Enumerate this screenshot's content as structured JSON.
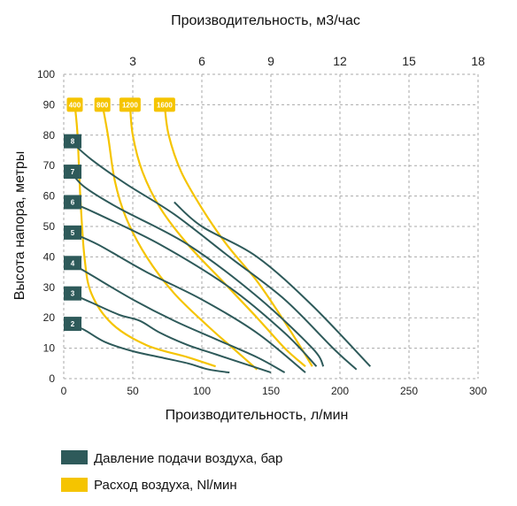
{
  "chart_data": {
    "type": "line",
    "title": "",
    "xlabel": "Производительность, л/мин",
    "x2label": "Производительность, м3/час",
    "ylabel": "Высота напора, метры",
    "xlim": [
      0,
      300
    ],
    "ylim": [
      0,
      100
    ],
    "x_ticks": [
      0,
      50,
      100,
      150,
      200,
      250,
      300
    ],
    "x2_ticks": [
      3,
      6,
      9,
      12,
      15,
      18
    ],
    "y_ticks": [
      0,
      10,
      20,
      30,
      40,
      50,
      60,
      70,
      80,
      90,
      100
    ],
    "grid": true,
    "colors": {
      "pressure": "#2e5a5a",
      "airflow": "#f5c400",
      "grid": "#aaaaaa"
    },
    "pressure_series": [
      {
        "name": "2",
        "points": [
          [
            5,
            18
          ],
          [
            15,
            16
          ],
          [
            30,
            12
          ],
          [
            50,
            9
          ],
          [
            70,
            7
          ],
          [
            90,
            5
          ],
          [
            105,
            3
          ],
          [
            120,
            2
          ]
        ]
      },
      {
        "name": "3",
        "points": [
          [
            5,
            28
          ],
          [
            20,
            25
          ],
          [
            40,
            21
          ],
          [
            55,
            19
          ],
          [
            70,
            15
          ],
          [
            90,
            11
          ],
          [
            110,
            8
          ],
          [
            130,
            5
          ],
          [
            150,
            2
          ]
        ]
      },
      {
        "name": "4",
        "points": [
          [
            5,
            38
          ],
          [
            20,
            34
          ],
          [
            50,
            26
          ],
          [
            80,
            19
          ],
          [
            110,
            13
          ],
          [
            140,
            7
          ],
          [
            160,
            2
          ]
        ]
      },
      {
        "name": "5",
        "points": [
          [
            5,
            48
          ],
          [
            25,
            44
          ],
          [
            60,
            35
          ],
          [
            100,
            26
          ],
          [
            140,
            15
          ],
          [
            175,
            2
          ]
        ]
      },
      {
        "name": "6",
        "points": [
          [
            5,
            58
          ],
          [
            25,
            54
          ],
          [
            70,
            44
          ],
          [
            120,
            30
          ],
          [
            160,
            15
          ],
          [
            183,
            4
          ]
        ]
      },
      {
        "name": "7",
        "points": [
          [
            5,
            68
          ],
          [
            15,
            63
          ],
          [
            40,
            56
          ],
          [
            90,
            44
          ],
          [
            140,
            27
          ],
          [
            180,
            10
          ],
          [
            188,
            4
          ]
        ]
      },
      {
        "name": "8",
        "points": [
          [
            5,
            78
          ],
          [
            20,
            72
          ],
          [
            45,
            64
          ],
          [
            80,
            54
          ],
          [
            120,
            40
          ],
          [
            160,
            26
          ],
          [
            195,
            10
          ],
          [
            212,
            3
          ]
        ]
      },
      {
        "name": "",
        "points": [
          [
            80,
            58
          ],
          [
            100,
            50
          ],
          [
            140,
            40
          ],
          [
            180,
            24
          ],
          [
            222,
            4
          ]
        ]
      }
    ],
    "airflow_series": [
      {
        "name": "400",
        "points": [
          [
            8,
            90
          ],
          [
            10,
            80
          ],
          [
            12,
            60
          ],
          [
            15,
            40
          ],
          [
            20,
            28
          ],
          [
            35,
            18
          ],
          [
            60,
            11
          ],
          [
            90,
            7
          ],
          [
            110,
            4
          ]
        ]
      },
      {
        "name": "800",
        "points": [
          [
            28,
            90
          ],
          [
            32,
            80
          ],
          [
            37,
            65
          ],
          [
            45,
            53
          ],
          [
            60,
            40
          ],
          [
            80,
            28
          ],
          [
            105,
            17
          ],
          [
            125,
            9
          ],
          [
            140,
            3
          ]
        ]
      },
      {
        "name": "1200",
        "points": [
          [
            48,
            90
          ],
          [
            50,
            80
          ],
          [
            57,
            68
          ],
          [
            70,
            56
          ],
          [
            90,
            44
          ],
          [
            115,
            32
          ],
          [
            140,
            20
          ],
          [
            160,
            10
          ],
          [
            175,
            4
          ]
        ]
      },
      {
        "name": "1600",
        "points": [
          [
            73,
            90
          ],
          [
            76,
            80
          ],
          [
            85,
            68
          ],
          [
            100,
            56
          ],
          [
            118,
            44
          ],
          [
            140,
            32
          ],
          [
            158,
            20
          ],
          [
            172,
            10
          ],
          [
            180,
            4
          ]
        ]
      }
    ]
  },
  "legend": {
    "pressure_label": "Давление подачи воздуха, бар",
    "airflow_label": "Расход воздуха, Nl/мин"
  }
}
